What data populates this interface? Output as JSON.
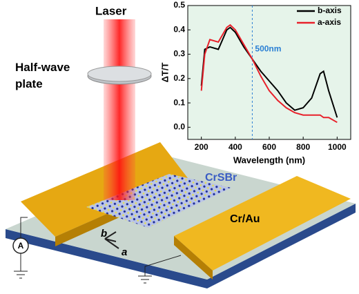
{
  "chart_data": {
    "type": "line",
    "x_label": "Wavelength (nm)",
    "y_label": "ΔT/T",
    "x": [
      200,
      220,
      250,
      300,
      350,
      370,
      400,
      450,
      500,
      550,
      600,
      650,
      700,
      750,
      800,
      850,
      900,
      920,
      950,
      1000
    ],
    "series": [
      {
        "name": "b-axis",
        "color": "#000000",
        "values": [
          0.17,
          0.32,
          0.33,
          0.32,
          0.4,
          0.41,
          0.39,
          0.33,
          0.28,
          0.23,
          0.19,
          0.15,
          0.1,
          0.07,
          0.08,
          0.12,
          0.22,
          0.23,
          0.15,
          0.04
        ]
      },
      {
        "name": "a-axis",
        "color": "#e8202a",
        "values": [
          0.15,
          0.3,
          0.36,
          0.35,
          0.41,
          0.42,
          0.4,
          0.34,
          0.28,
          0.21,
          0.15,
          0.11,
          0.08,
          0.06,
          0.05,
          0.05,
          0.05,
          0.04,
          0.04,
          0.02
        ]
      }
    ],
    "xlim": [
      120,
      1080
    ],
    "ylim": [
      -0.05,
      0.5
    ],
    "xticks": [
      200,
      400,
      600,
      800,
      1000
    ],
    "yticks": [
      {
        "value": 0,
        "label": "0.0"
      },
      0.1,
      0.2,
      0.3,
      0.4,
      0.5
    ],
    "annotation": {
      "x": 500,
      "text": "500nm",
      "color": "#2a7fd4"
    },
    "legend": "upper right",
    "background": "#e6f4ea"
  },
  "diagram": {
    "laser": "Laser",
    "plate": "Half-wave plate",
    "crystal": "CrSBr",
    "electrode": "Cr/Au",
    "axis_b": "b",
    "axis_a": "a",
    "meter": "A"
  }
}
